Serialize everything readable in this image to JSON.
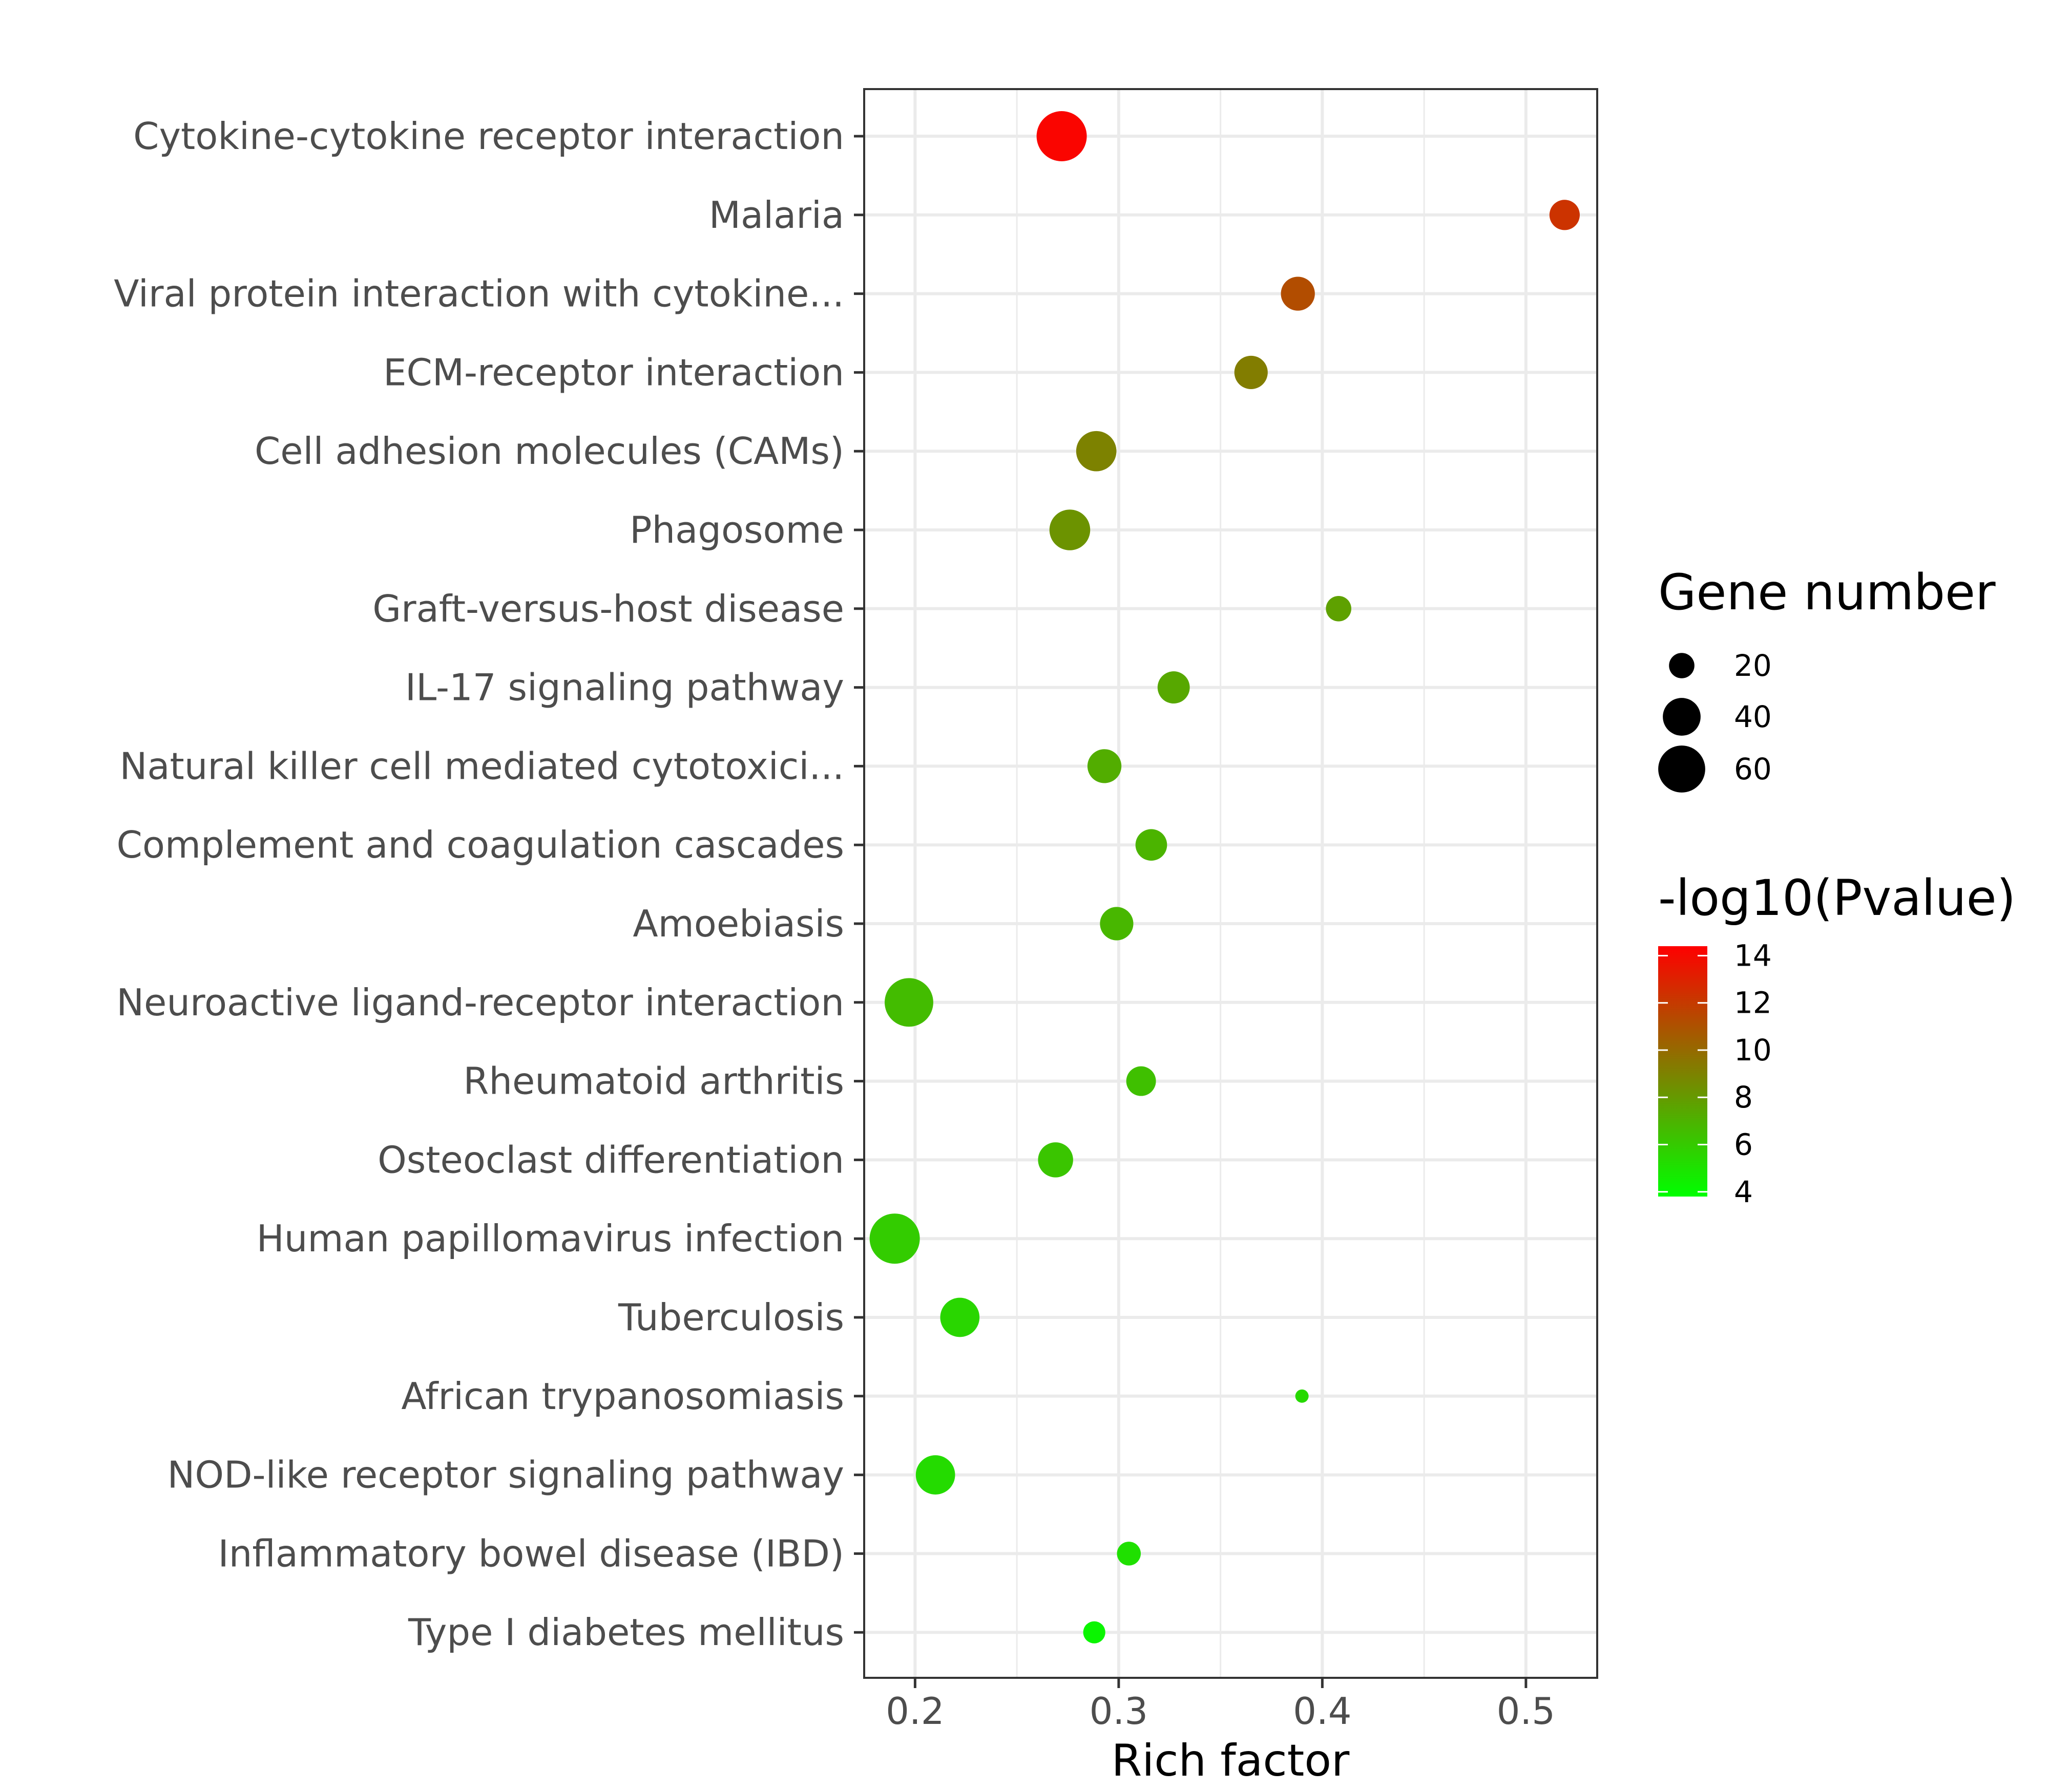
{
  "chart_data": {
    "type": "scatter",
    "xlabel": "Rich factor",
    "x_ticks": [
      0.2,
      0.3,
      0.4,
      0.5
    ],
    "x_tick_labels": [
      "0.2",
      "0.3",
      "0.4",
      "0.5"
    ],
    "xlim": [
      0.175,
      0.535
    ],
    "grid": true,
    "legend_position": "right",
    "size_legend": {
      "title": "Gene number",
      "values": [
        20,
        40,
        60
      ],
      "labels": [
        "20",
        "40",
        "60"
      ]
    },
    "color_legend": {
      "title": "-log10(Pvalue)",
      "range": [
        3.8,
        14.4
      ],
      "ticks": [
        4,
        6,
        8,
        10,
        12,
        14
      ],
      "labels": [
        "4",
        "6",
        "8",
        "10",
        "12",
        "14"
      ],
      "colors": [
        "#00ff00",
        "#ff0000"
      ]
    },
    "points": [
      {
        "pathway": "Cytokine-cytokine receptor interaction",
        "rich_factor": 0.272,
        "gene_number": 68,
        "neg_log10_p": 14.2
      },
      {
        "pathway": "Malaria",
        "rich_factor": 0.519,
        "gene_number": 27,
        "neg_log10_p": 12.3
      },
      {
        "pathway": "Viral protein interaction with cytokine...",
        "rich_factor": 0.388,
        "gene_number": 33,
        "neg_log10_p": 11.2
      },
      {
        "pathway": "ECM-receptor interaction",
        "rich_factor": 0.365,
        "gene_number": 32,
        "neg_log10_p": 9.2
      },
      {
        "pathway": "Cell adhesion molecules (CAMs)",
        "rich_factor": 0.289,
        "gene_number": 45,
        "neg_log10_p": 9.0
      },
      {
        "pathway": "Phagosome",
        "rich_factor": 0.276,
        "gene_number": 46,
        "neg_log10_p": 8.3
      },
      {
        "pathway": "Graft-versus-host disease",
        "rich_factor": 0.408,
        "gene_number": 20,
        "neg_log10_p": 7.7
      },
      {
        "pathway": "IL-17 signaling pathway",
        "rich_factor": 0.327,
        "gene_number": 30,
        "neg_log10_p": 7.4
      },
      {
        "pathway": "Natural killer cell mediated cytotoxici...",
        "rich_factor": 0.293,
        "gene_number": 33,
        "neg_log10_p": 7.2
      },
      {
        "pathway": "Complement and coagulation cascades",
        "rich_factor": 0.316,
        "gene_number": 29,
        "neg_log10_p": 6.9
      },
      {
        "pathway": "Amoebiasis",
        "rich_factor": 0.299,
        "gene_number": 32,
        "neg_log10_p": 6.8
      },
      {
        "pathway": "Neuroactive ligand-receptor interaction",
        "rich_factor": 0.197,
        "gene_number": 64,
        "neg_log10_p": 6.6
      },
      {
        "pathway": "Rheumatoid arthritis",
        "rich_factor": 0.311,
        "gene_number": 26,
        "neg_log10_p": 6.4
      },
      {
        "pathway": "Osteoclast differentiation",
        "rich_factor": 0.269,
        "gene_number": 35,
        "neg_log10_p": 6.2
      },
      {
        "pathway": "Human papillomavirus infection",
        "rich_factor": 0.19,
        "gene_number": 68,
        "neg_log10_p": 5.9
      },
      {
        "pathway": "Tuberculosis",
        "rich_factor": 0.222,
        "gene_number": 43,
        "neg_log10_p": 5.5
      },
      {
        "pathway": "African trypanosomiasis",
        "rich_factor": 0.39,
        "gene_number": 8,
        "neg_log10_p": 5.4
      },
      {
        "pathway": "NOD-like receptor signaling pathway",
        "rich_factor": 0.21,
        "gene_number": 43,
        "neg_log10_p": 5.3
      },
      {
        "pathway": "Inflammatory bowel disease (IBD)",
        "rich_factor": 0.305,
        "gene_number": 18,
        "neg_log10_p": 5.1
      },
      {
        "pathway": "Type I diabetes mellitus",
        "rich_factor": 0.288,
        "gene_number": 16,
        "neg_log10_p": 4.2
      }
    ]
  }
}
